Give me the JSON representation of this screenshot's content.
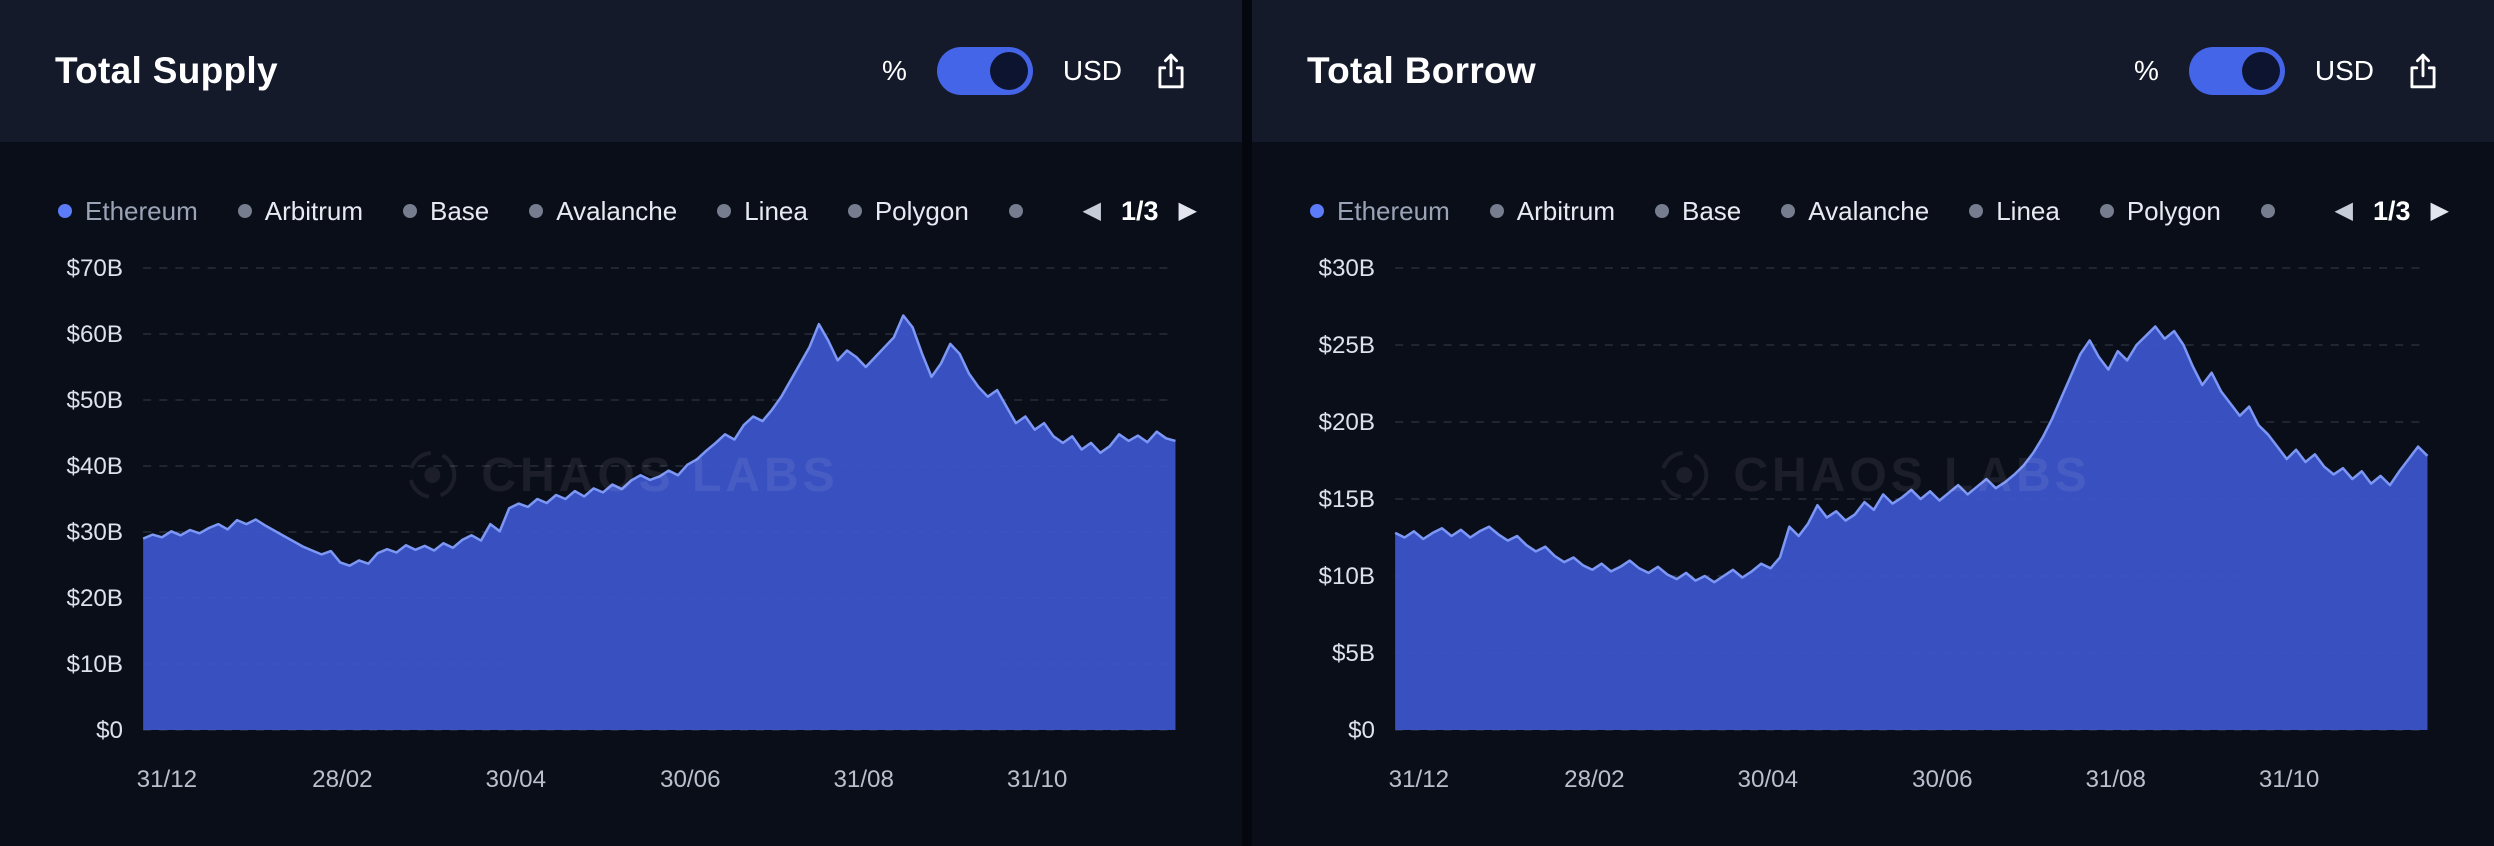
{
  "watermark": {
    "text": "CHAOS LABS"
  },
  "colors": {
    "accent_blue": "#4565e9",
    "toggle_knob": "#0d1430",
    "area_fill": "#3c55c9",
    "area_line": "#7d97f5",
    "legend_active_dot": "#5b7bf7",
    "legend_inactive_dot": "#757d8f",
    "grid_line": "rgba(151,160,180,0.32)",
    "y_label": "#dde1ea",
    "x_label": "#b9bfcd"
  },
  "panels": [
    {
      "title": "Total Supply",
      "controls": {
        "percent_label": "%",
        "usd_label": "USD",
        "toggle_state": "USD"
      },
      "legend": {
        "items": [
          {
            "label": "Ethereum",
            "active": true
          },
          {
            "label": "Arbitrum",
            "active": false
          },
          {
            "label": "Base",
            "active": false
          },
          {
            "label": "Avalanche",
            "active": false
          },
          {
            "label": "Linea",
            "active": false
          },
          {
            "label": "Polygon",
            "active": false
          },
          {
            "label": "",
            "active": false
          }
        ],
        "page": "1/3"
      },
      "chart_data": {
        "type": "area",
        "title": "Total Supply",
        "ylabel": "USD",
        "ylim": [
          0,
          70
        ],
        "yticks": [
          0,
          10,
          20,
          30,
          40,
          50,
          60,
          70
        ],
        "ytick_labels": [
          "$0",
          "$10B",
          "$20B",
          "$30B",
          "$40B",
          "$50B",
          "$60B",
          "$70B"
        ],
        "x_ticks": [
          {
            "label": "31/12",
            "t": 0.023
          },
          {
            "label": "28/02",
            "t": 0.193
          },
          {
            "label": "30/04",
            "t": 0.361
          },
          {
            "label": "30/06",
            "t": 0.53
          },
          {
            "label": "31/08",
            "t": 0.698
          },
          {
            "label": "31/10",
            "t": 0.866
          }
        ],
        "grid": true,
        "legend_position": "top",
        "series": [
          {
            "name": "Ethereum",
            "unit": "$B",
            "values": [
              29.0,
              29.6,
              29.2,
              30.1,
              29.5,
              30.3,
              29.8,
              30.6,
              31.2,
              30.4,
              31.8,
              31.2,
              31.9,
              31.0,
              30.2,
              29.4,
              28.6,
              27.8,
              27.2,
              26.6,
              27.1,
              25.4,
              24.9,
              25.7,
              25.2,
              26.8,
              27.4,
              26.9,
              28.0,
              27.3,
              27.9,
              27.2,
              28.3,
              27.6,
              28.8,
              29.5,
              28.7,
              31.2,
              30.1,
              33.6,
              34.3,
              33.8,
              35.0,
              34.4,
              35.6,
              35.0,
              36.2,
              35.4,
              36.6,
              36.0,
              37.2,
              36.5,
              37.8,
              38.6,
              37.9,
              38.4,
              39.3,
              38.6,
              40.2,
              41.0,
              42.3,
              43.5,
              44.8,
              44.0,
              46.2,
              47.5,
              46.8,
              48.5,
              50.5,
              53.0,
              55.5,
              58.0,
              61.5,
              59.0,
              56.0,
              57.5,
              56.5,
              55.0,
              56.5,
              58.0,
              59.5,
              62.8,
              61.0,
              57.0,
              53.5,
              55.5,
              58.5,
              57.0,
              54.0,
              52.0,
              50.5,
              51.5,
              49.0,
              46.5,
              47.5,
              45.5,
              46.5,
              44.5,
              43.5,
              44.5,
              42.5,
              43.5,
              42.0,
              43.0,
              44.8,
              43.8,
              44.6,
              43.6,
              45.2,
              44.2,
              43.8
            ]
          }
        ]
      }
    },
    {
      "title": "Total Borrow",
      "controls": {
        "percent_label": "%",
        "usd_label": "USD",
        "toggle_state": "USD"
      },
      "legend": {
        "items": [
          {
            "label": "Ethereum",
            "active": true
          },
          {
            "label": "Arbitrum",
            "active": false
          },
          {
            "label": "Base",
            "active": false
          },
          {
            "label": "Avalanche",
            "active": false
          },
          {
            "label": "Linea",
            "active": false
          },
          {
            "label": "Polygon",
            "active": false
          },
          {
            "label": "",
            "active": false
          }
        ],
        "page": "1/3"
      },
      "chart_data": {
        "type": "area",
        "title": "Total Borrow",
        "ylabel": "USD",
        "ylim": [
          0,
          30
        ],
        "yticks": [
          0,
          5,
          10,
          15,
          20,
          25,
          30
        ],
        "ytick_labels": [
          "$0",
          "$5B",
          "$10B",
          "$15B",
          "$20B",
          "$25B",
          "$30B"
        ],
        "x_ticks": [
          {
            "label": "31/12",
            "t": 0.023
          },
          {
            "label": "28/02",
            "t": 0.193
          },
          {
            "label": "30/04",
            "t": 0.361
          },
          {
            "label": "30/06",
            "t": 0.53
          },
          {
            "label": "31/08",
            "t": 0.698
          },
          {
            "label": "31/10",
            "t": 0.866
          }
        ],
        "grid": true,
        "legend_position": "top",
        "series": [
          {
            "name": "Ethereum",
            "unit": "$B",
            "values": [
              12.8,
              12.5,
              12.9,
              12.4,
              12.8,
              13.1,
              12.6,
              13.0,
              12.5,
              12.9,
              13.2,
              12.7,
              12.3,
              12.6,
              12.0,
              11.6,
              11.9,
              11.3,
              10.9,
              11.2,
              10.7,
              10.4,
              10.8,
              10.3,
              10.6,
              11.0,
              10.5,
              10.2,
              10.6,
              10.1,
              9.8,
              10.2,
              9.7,
              10.0,
              9.6,
              10.0,
              10.4,
              9.9,
              10.3,
              10.8,
              10.5,
              11.2,
              13.2,
              12.6,
              13.4,
              14.6,
              13.8,
              14.2,
              13.6,
              14.0,
              14.8,
              14.3,
              15.3,
              14.7,
              15.1,
              15.6,
              15.0,
              15.5,
              14.9,
              15.4,
              15.9,
              15.3,
              15.8,
              16.3,
              15.7,
              16.1,
              16.6,
              17.2,
              18.0,
              19.0,
              20.2,
              21.6,
              23.0,
              24.4,
              25.3,
              24.2,
              23.4,
              24.6,
              24.0,
              25.0,
              25.6,
              26.2,
              25.4,
              25.9,
              25.0,
              23.6,
              22.4,
              23.2,
              22.0,
              21.2,
              20.4,
              21.0,
              19.8,
              19.2,
              18.4,
              17.6,
              18.2,
              17.4,
              17.9,
              17.1,
              16.6,
              17.0,
              16.3,
              16.8,
              16.0,
              16.5,
              15.9,
              16.8,
              17.6,
              18.4,
              17.8
            ]
          }
        ]
      }
    }
  ]
}
